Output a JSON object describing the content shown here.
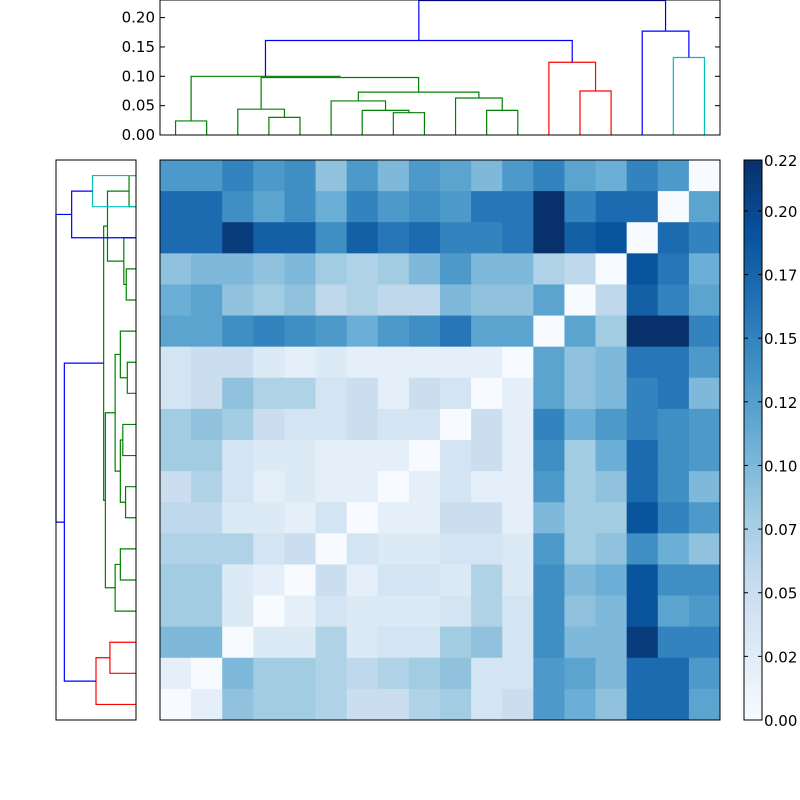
{
  "colors": {
    "background": "#ffffff",
    "axes": "#000000",
    "green": "#008000",
    "red": "#ff0000",
    "cyan": "#00bfbf",
    "blue": "#0000ff",
    "cmap": [
      "#f7fbff",
      "#deebf7",
      "#c6dbef",
      "#9ecae1",
      "#6baed6",
      "#4292c6",
      "#2171b5",
      "#08519c",
      "#08306b"
    ]
  },
  "chart_data": [
    {
      "type": "dendrogram",
      "name": "column-dendrogram",
      "orientation": "top",
      "leaf_count": 18,
      "ylim": [
        0,
        0.23
      ],
      "yticks": [
        0,
        0.05,
        0.1,
        0.15,
        0.2
      ],
      "ytick_labels": [
        "0.00",
        "0.05",
        "0.10",
        "0.15",
        "0.20"
      ],
      "links": [
        {
          "left": 0.5,
          "right": 1.5,
          "left_h": 0,
          "right_h": 0,
          "height": 0.024,
          "color": "green"
        },
        {
          "left": 3.5,
          "right": 4.5,
          "left_h": 0,
          "right_h": 0,
          "height": 0.03,
          "color": "green"
        },
        {
          "left": 2.5,
          "right": 4.0,
          "left_h": 0,
          "right_h": 0.03,
          "height": 0.044,
          "color": "green"
        },
        {
          "left": 7.5,
          "right": 8.5,
          "left_h": 0,
          "right_h": 0,
          "height": 0.038,
          "color": "green"
        },
        {
          "left": 6.5,
          "right": 8.0,
          "left_h": 0,
          "right_h": 0.038,
          "height": 0.042,
          "color": "green"
        },
        {
          "left": 5.5,
          "right": 7.25,
          "left_h": 0,
          "right_h": 0.042,
          "height": 0.058,
          "color": "green"
        },
        {
          "left": 10.5,
          "right": 11.5,
          "left_h": 0,
          "right_h": 0,
          "height": 0.042,
          "color": "green"
        },
        {
          "left": 9.5,
          "right": 11.0,
          "left_h": 0,
          "right_h": 0.042,
          "height": 0.063,
          "color": "green"
        },
        {
          "left": 6.375,
          "right": 10.25,
          "left_h": 0.058,
          "right_h": 0.063,
          "height": 0.073,
          "color": "green"
        },
        {
          "left": 3.25,
          "right": 8.3125,
          "left_h": 0.044,
          "right_h": 0.073,
          "height": 0.098,
          "color": "green"
        },
        {
          "left": 1.0,
          "right": 5.78,
          "left_h": 0.024,
          "right_h": 0.098,
          "height": 0.1,
          "color": "green"
        },
        {
          "left": 13.5,
          "right": 14.5,
          "left_h": 0,
          "right_h": 0,
          "height": 0.075,
          "color": "red"
        },
        {
          "left": 12.5,
          "right": 14.0,
          "left_h": 0,
          "right_h": 0.075,
          "height": 0.124,
          "color": "red"
        },
        {
          "left": 3.39,
          "right": 13.25,
          "left_h": 0.1,
          "right_h": 0.124,
          "height": 0.161,
          "color": "blue"
        },
        {
          "left": 16.5,
          "right": 17.5,
          "left_h": 0,
          "right_h": 0,
          "height": 0.132,
          "color": "cyan"
        },
        {
          "left": 15.5,
          "right": 17.0,
          "left_h": 0,
          "right_h": 0.132,
          "height": 0.177,
          "color": "blue"
        },
        {
          "left": 8.32,
          "right": 16.25,
          "left_h": 0.161,
          "right_h": 0.177,
          "height": 0.229,
          "color": "blue"
        }
      ]
    },
    {
      "type": "dendrogram",
      "name": "row-dendrogram",
      "orientation": "left",
      "leaf_count": 18,
      "xlim": [
        0,
        0.23
      ],
      "links": [
        {
          "top": 0.5,
          "bottom": 1.5,
          "top_h": 0,
          "bottom_h": 0,
          "height": 0.02,
          "color": "green"
        },
        {
          "top": 3.5,
          "bottom": 4.5,
          "top_h": 0,
          "bottom_h": 0,
          "height": 0.028,
          "color": "green"
        },
        {
          "top": 2.5,
          "bottom": 4.0,
          "top_h": 0,
          "bottom_h": 0.028,
          "height": 0.035,
          "color": "green"
        },
        {
          "top": 1.0,
          "bottom": 3.25,
          "top_h": 0.02,
          "bottom_h": 0.035,
          "height": 0.082,
          "color": "green"
        },
        {
          "top": 6.5,
          "bottom": 7.5,
          "top_h": 0,
          "bottom_h": 0,
          "height": 0.025,
          "color": "green"
        },
        {
          "top": 5.5,
          "bottom": 7.0,
          "top_h": 0,
          "bottom_h": 0.025,
          "height": 0.045,
          "color": "green"
        },
        {
          "top": 8.5,
          "bottom": 9.5,
          "top_h": 0,
          "bottom_h": 0,
          "height": 0.038,
          "color": "green"
        },
        {
          "top": 10.5,
          "bottom": 11.5,
          "top_h": 0,
          "bottom_h": 0,
          "height": 0.03,
          "color": "green"
        },
        {
          "top": 9.0,
          "bottom": 11.0,
          "top_h": 0.038,
          "bottom_h": 0.03,
          "height": 0.045,
          "color": "green"
        },
        {
          "top": 6.25,
          "bottom": 10.0,
          "top_h": 0.045,
          "bottom_h": 0.045,
          "height": 0.06,
          "color": "green"
        },
        {
          "top": 12.5,
          "bottom": 13.5,
          "top_h": 0,
          "bottom_h": 0,
          "height": 0.045,
          "color": "green"
        },
        {
          "top": 13.0,
          "bottom": 14.5,
          "top_h": 0.045,
          "bottom_h": 0,
          "height": 0.06,
          "color": "green"
        },
        {
          "top": 8.125,
          "bottom": 13.75,
          "top_h": 0.06,
          "bottom_h": 0.06,
          "height": 0.088,
          "color": "green"
        },
        {
          "top": 2.125,
          "bottom": 10.94,
          "top_h": 0.082,
          "bottom_h": 0.088,
          "height": 0.093,
          "color": "green"
        },
        {
          "top": 15.5,
          "bottom": 16.5,
          "top_h": 0,
          "bottom_h": 0,
          "height": 0.075,
          "color": "red"
        },
        {
          "top": 16.0,
          "bottom": 17.5,
          "top_h": 0.075,
          "bottom_h": 0,
          "height": 0.115,
          "color": "red"
        },
        {
          "top": 16.75,
          "bottom": 6.53,
          "top_h": 0.115,
          "bottom_h": 0.093,
          "height": 0.206,
          "color": "blue"
        },
        {
          "top": 0.5,
          "bottom": 1.5,
          "top_h": 0,
          "bottom_h": 0,
          "height": 0.125,
          "color": "cyan",
          "group": "top"
        },
        {
          "top": 1.0,
          "bottom": 2.5,
          "top_h": 0.125,
          "bottom_h": 0,
          "height": 0.185,
          "color": "blue",
          "group": "top"
        },
        {
          "top": 1.75,
          "bottom": 11.64,
          "top_h": 0.185,
          "bottom_h": 0.206,
          "height": 0.23,
          "color": "blue",
          "group": "join"
        }
      ]
    },
    {
      "type": "heatmap",
      "name": "distance-matrix",
      "rows": 18,
      "cols": 18,
      "vmin": 0,
      "vmax": 0.22,
      "values": [
        [
          0.13,
          0.13,
          0.15,
          0.13,
          0.14,
          0.09,
          0.13,
          0.1,
          0.13,
          0.12,
          0.1,
          0.13,
          0.15,
          0.12,
          0.11,
          0.15,
          0.13,
          0.0
        ],
        [
          0.17,
          0.17,
          0.14,
          0.12,
          0.14,
          0.11,
          0.15,
          0.13,
          0.14,
          0.13,
          0.16,
          0.16,
          0.22,
          0.15,
          0.17,
          0.17,
          0.0,
          0.12
        ],
        [
          0.17,
          0.17,
          0.21,
          0.18,
          0.18,
          0.14,
          0.18,
          0.16,
          0.17,
          0.15,
          0.15,
          0.16,
          0.22,
          0.18,
          0.19,
          0.0,
          0.17,
          0.15
        ],
        [
          0.09,
          0.1,
          0.1,
          0.09,
          0.1,
          0.08,
          0.07,
          0.08,
          0.1,
          0.13,
          0.1,
          0.1,
          0.07,
          0.06,
          0.0,
          0.19,
          0.16,
          0.11
        ],
        [
          0.11,
          0.12,
          0.09,
          0.08,
          0.09,
          0.06,
          0.07,
          0.06,
          0.06,
          0.1,
          0.09,
          0.09,
          0.12,
          0.0,
          0.06,
          0.18,
          0.15,
          0.12
        ],
        [
          0.12,
          0.12,
          0.14,
          0.15,
          0.14,
          0.13,
          0.11,
          0.13,
          0.14,
          0.16,
          0.12,
          0.12,
          0.0,
          0.12,
          0.08,
          0.22,
          0.22,
          0.15
        ],
        [
          0.04,
          0.05,
          0.05,
          0.03,
          0.02,
          0.03,
          0.02,
          0.02,
          0.02,
          0.02,
          0.02,
          0.0,
          0.12,
          0.09,
          0.1,
          0.16,
          0.16,
          0.13
        ],
        [
          0.04,
          0.05,
          0.09,
          0.07,
          0.07,
          0.04,
          0.05,
          0.02,
          0.05,
          0.04,
          0.0,
          0.02,
          0.12,
          0.09,
          0.1,
          0.15,
          0.16,
          0.1
        ],
        [
          0.08,
          0.09,
          0.08,
          0.05,
          0.04,
          0.04,
          0.05,
          0.04,
          0.04,
          0.0,
          0.05,
          0.02,
          0.15,
          0.11,
          0.13,
          0.15,
          0.14,
          0.13
        ],
        [
          0.08,
          0.08,
          0.04,
          0.03,
          0.03,
          0.02,
          0.02,
          0.02,
          0.0,
          0.04,
          0.05,
          0.02,
          0.14,
          0.08,
          0.11,
          0.17,
          0.14,
          0.13
        ],
        [
          0.05,
          0.07,
          0.04,
          0.02,
          0.03,
          0.02,
          0.02,
          0.0,
          0.02,
          0.04,
          0.02,
          0.02,
          0.13,
          0.08,
          0.09,
          0.17,
          0.14,
          0.1
        ],
        [
          0.06,
          0.06,
          0.03,
          0.03,
          0.02,
          0.04,
          0.0,
          0.02,
          0.02,
          0.05,
          0.05,
          0.02,
          0.1,
          0.08,
          0.08,
          0.19,
          0.15,
          0.13
        ],
        [
          0.07,
          0.07,
          0.07,
          0.04,
          0.05,
          0.0,
          0.04,
          0.03,
          0.03,
          0.04,
          0.04,
          0.03,
          0.13,
          0.08,
          0.09,
          0.14,
          0.11,
          0.09
        ],
        [
          0.08,
          0.08,
          0.03,
          0.02,
          0.0,
          0.05,
          0.02,
          0.04,
          0.04,
          0.03,
          0.07,
          0.03,
          0.14,
          0.1,
          0.11,
          0.19,
          0.14,
          0.14
        ],
        [
          0.08,
          0.08,
          0.03,
          0.0,
          0.02,
          0.04,
          0.03,
          0.03,
          0.03,
          0.04,
          0.07,
          0.04,
          0.14,
          0.09,
          0.1,
          0.19,
          0.12,
          0.13
        ],
        [
          0.1,
          0.1,
          0.0,
          0.03,
          0.03,
          0.07,
          0.03,
          0.04,
          0.04,
          0.08,
          0.09,
          0.04,
          0.14,
          0.1,
          0.1,
          0.21,
          0.15,
          0.15
        ],
        [
          0.02,
          0.0,
          0.1,
          0.08,
          0.08,
          0.07,
          0.06,
          0.07,
          0.08,
          0.09,
          0.04,
          0.04,
          0.13,
          0.12,
          0.1,
          0.17,
          0.17,
          0.13
        ],
        [
          0.0,
          0.02,
          0.09,
          0.08,
          0.08,
          0.07,
          0.05,
          0.05,
          0.07,
          0.08,
          0.04,
          0.05,
          0.13,
          0.11,
          0.09,
          0.17,
          0.17,
          0.12
        ]
      ]
    },
    {
      "type": "colorbar",
      "name": "distance-colorbar",
      "vmin": 0,
      "vmax": 0.22,
      "ticks": [
        0,
        0.025,
        0.05,
        0.075,
        0.1,
        0.125,
        0.15,
        0.175,
        0.2,
        0.22
      ],
      "tick_labels": [
        "0.00",
        "0.02",
        "0.05",
        "0.07",
        "0.10",
        "0.12",
        "0.15",
        "0.17",
        "0.20",
        "0.22"
      ]
    }
  ]
}
